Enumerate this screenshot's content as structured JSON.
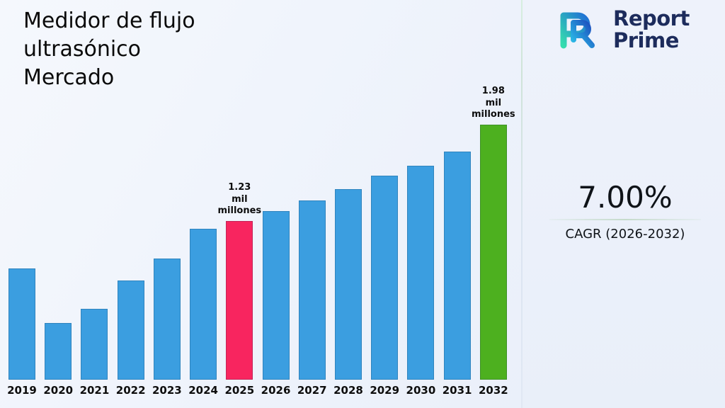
{
  "page": {
    "title_lines": [
      "Medidor de flujo",
      "ultrasónico",
      "Mercado"
    ]
  },
  "logo": {
    "line1": "Report",
    "line2": "Prime",
    "navy": "#1d2c5c",
    "teal": "#35dcae",
    "blue": "#1f6fd6"
  },
  "cagr": {
    "value": "7.00%",
    "label": "CAGR (2026-2032)"
  },
  "chart_data": {
    "type": "bar",
    "title": "Medidor de flujo ultrasónico Mercado",
    "unit": "mil millones",
    "categories": [
      "2019",
      "2020",
      "2021",
      "2022",
      "2023",
      "2024",
      "2025",
      "2026",
      "2027",
      "2028",
      "2029",
      "2030",
      "2031",
      "2032"
    ],
    "values": [
      0.86,
      0.44,
      0.55,
      0.77,
      0.94,
      1.17,
      1.23,
      1.31,
      1.39,
      1.48,
      1.58,
      1.66,
      1.77,
      1.98
    ],
    "labeled_values": {
      "2025": "1.23 mil millones",
      "2032": "1.98 mil millones"
    },
    "annotations": [
      {
        "category": "2025",
        "lines": [
          "1.23",
          "mil",
          "millones"
        ]
      },
      {
        "category": "2032",
        "lines": [
          "1.98",
          "mil",
          "millones"
        ]
      }
    ],
    "colors": {
      "default": "#3B9EE0",
      "highlight": "#F8255F",
      "final": "#4DB01F"
    },
    "bar_colors": {
      "2025": "#F8255F",
      "2032": "#4DB01F"
    },
    "ylim": [
      0,
      2.2
    ],
    "grid": false,
    "legend": false
  }
}
